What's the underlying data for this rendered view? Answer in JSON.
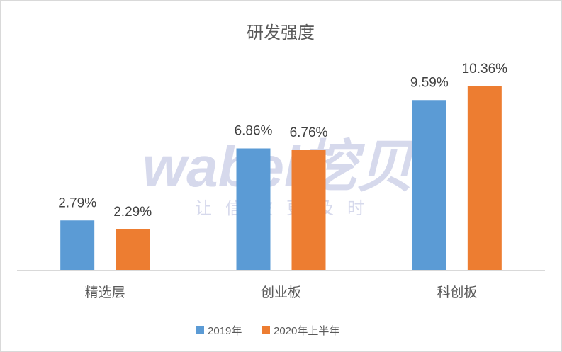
{
  "chart_data": {
    "type": "bar",
    "title": "研发强度",
    "xlabel": "",
    "ylabel": "",
    "categories": [
      "精选层",
      "创业板",
      "科创板"
    ],
    "series": [
      {
        "name": "2019年",
        "values": [
          2.79,
          6.86,
          9.59
        ],
        "color": "#5B9BD5"
      },
      {
        "name": "2020年上半年",
        "values": [
          2.29,
          6.76,
          10.36
        ],
        "color": "#ED7D31"
      }
    ],
    "unit": "%",
    "ylim": [
      0,
      12
    ],
    "grid": false,
    "legend": "bottom"
  },
  "watermark": {
    "brand": "wabei挖贝",
    "slogan": "让信披更及时"
  }
}
